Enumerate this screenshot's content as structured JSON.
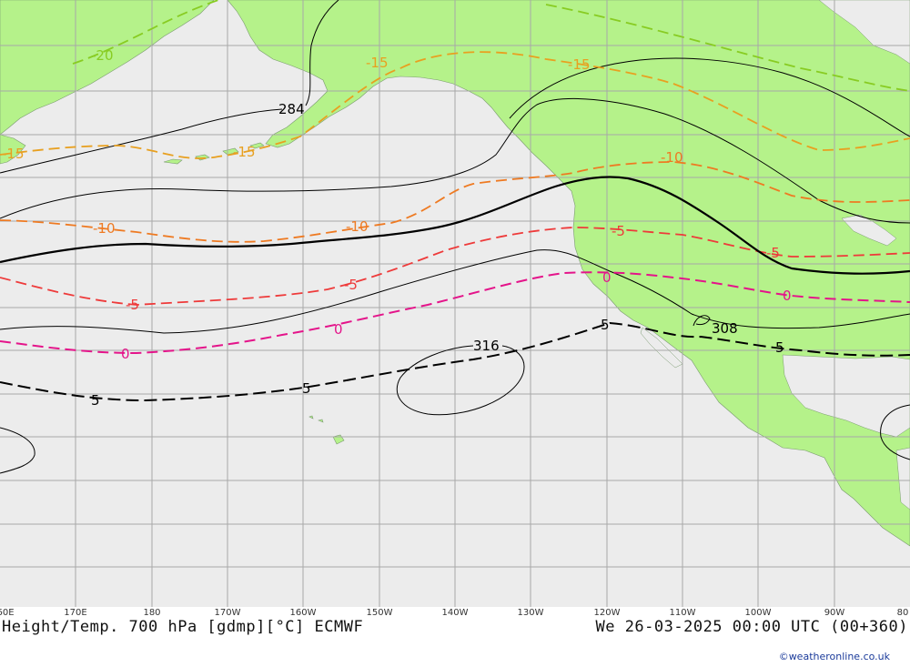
{
  "footer": {
    "title": "Height/Temp. 700 hPa [gdmp][°C] ECMWF",
    "valid_time": "We 26-03-2025 00:00 UTC (00+360)",
    "credit": "©weatheronline.co.uk"
  },
  "longitude_labels": [
    "60E",
    "170E",
    "180",
    "170W",
    "160W",
    "150W",
    "140W",
    "130W",
    "120W",
    "110W",
    "100W",
    "90W",
    "80"
  ],
  "height_labels": [
    "284",
    "316",
    "308"
  ],
  "temperature_labels": {
    "minus20": "-20",
    "minus15": "-15",
    "minus10": "-10",
    "minus5": "-5",
    "zero": "0",
    "plus5": "5"
  },
  "colors": {
    "ocean": "#ececec",
    "land": "#b5f28a",
    "grid": "#a8a8a8",
    "height_contour": "#000000",
    "temp_minus20": "#88cc22",
    "temp_minus15": "#e8a020",
    "temp_minus10": "#ee7a22",
    "temp_minus5": "#ee3a3a",
    "temp_zero": "#e4148a",
    "temp_plus5": "#000000"
  }
}
